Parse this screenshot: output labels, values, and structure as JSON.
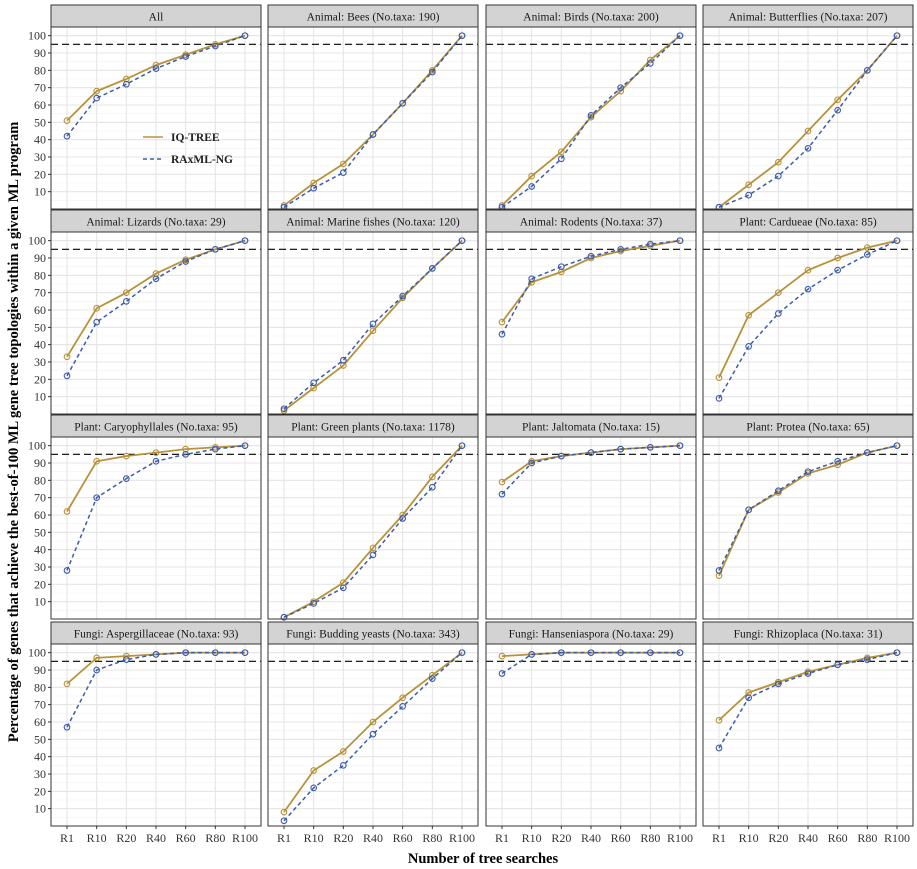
{
  "figure": {
    "ylabel": "Percentage of genes that achieve the best-of-100 ML gene tree topologies within a given ML program",
    "xlabel": "Number of tree searches",
    "legend": [
      {
        "label": "IQ-TREE",
        "color": "#B8923A",
        "style": "solid"
      },
      {
        "label": "RAxML-NG",
        "color": "#3B5BAE",
        "style": "dashed"
      }
    ],
    "colors": {
      "iqtree": "#B8923A",
      "raxml": "#3B5BAE",
      "strip": "#D3D3D3",
      "grid": "#E5E5E5",
      "reference": "#000000"
    }
  },
  "chart_data": [
    {
      "type": "line",
      "title": "All",
      "categories": [
        "R1",
        "R10",
        "R20",
        "R40",
        "R60",
        "R80",
        "R100"
      ],
      "ylim": [
        0,
        105
      ],
      "yticks": [
        10,
        20,
        30,
        40,
        50,
        60,
        70,
        80,
        90,
        100
      ],
      "reference_line": 95,
      "grid": true,
      "legend_position": "inside-left",
      "series": [
        {
          "name": "IQ-TREE",
          "values": [
            51,
            68,
            75,
            83,
            89,
            95,
            100
          ]
        },
        {
          "name": "RAxML-NG",
          "values": [
            42,
            64,
            72,
            81,
            88,
            94,
            100
          ]
        }
      ]
    },
    {
      "type": "line",
      "title": "Animal: Bees (No.taxa: 190)",
      "categories": [
        "R1",
        "R10",
        "R20",
        "R40",
        "R60",
        "R80",
        "R100"
      ],
      "ylim": [
        0,
        105
      ],
      "reference_line": 95,
      "series": [
        {
          "name": "IQ-TREE",
          "values": [
            2,
            15,
            26,
            43,
            61,
            80,
            100
          ]
        },
        {
          "name": "RAxML-NG",
          "values": [
            1,
            12,
            21,
            43,
            61,
            79,
            100
          ]
        }
      ]
    },
    {
      "type": "line",
      "title": "Animal: Birds (No.taxa: 200)",
      "categories": [
        "R1",
        "R10",
        "R20",
        "R40",
        "R60",
        "R80",
        "R100"
      ],
      "ylim": [
        0,
        105
      ],
      "reference_line": 95,
      "series": [
        {
          "name": "IQ-TREE",
          "values": [
            2,
            19,
            33,
            53,
            68,
            86,
            100
          ]
        },
        {
          "name": "RAxML-NG",
          "values": [
            1,
            13,
            29,
            54,
            70,
            84,
            100
          ]
        }
      ]
    },
    {
      "type": "line",
      "title": "Animal: Butterflies (No.taxa: 207)",
      "categories": [
        "R1",
        "R10",
        "R20",
        "R40",
        "R60",
        "R80",
        "R100"
      ],
      "ylim": [
        0,
        105
      ],
      "reference_line": 95,
      "series": [
        {
          "name": "IQ-TREE",
          "values": [
            1,
            14,
            27,
            45,
            63,
            80,
            100
          ]
        },
        {
          "name": "RAxML-NG",
          "values": [
            1,
            8,
            19,
            35,
            57,
            80,
            100
          ]
        }
      ]
    },
    {
      "type": "line",
      "title": "Animal: Lizards (No.taxa: 29)",
      "categories": [
        "R1",
        "R10",
        "R20",
        "R40",
        "R60",
        "R80",
        "R100"
      ],
      "ylim": [
        0,
        105
      ],
      "reference_line": 95,
      "series": [
        {
          "name": "IQ-TREE",
          "values": [
            33,
            61,
            70,
            81,
            89,
            95,
            100
          ]
        },
        {
          "name": "RAxML-NG",
          "values": [
            22,
            53,
            65,
            78,
            88,
            95,
            100
          ]
        }
      ]
    },
    {
      "type": "line",
      "title": "Animal: Marine fishes (No.taxa: 120)",
      "categories": [
        "R1",
        "R10",
        "R20",
        "R40",
        "R60",
        "R80",
        "R100"
      ],
      "ylim": [
        0,
        105
      ],
      "reference_line": 95,
      "series": [
        {
          "name": "IQ-TREE",
          "values": [
            2,
            15,
            28,
            48,
            67,
            84,
            100
          ]
        },
        {
          "name": "RAxML-NG",
          "values": [
            3,
            18,
            31,
            52,
            68,
            84,
            100
          ]
        }
      ]
    },
    {
      "type": "line",
      "title": "Animal: Rodents (No.taxa: 37)",
      "categories": [
        "R1",
        "R10",
        "R20",
        "R40",
        "R60",
        "R80",
        "R100"
      ],
      "ylim": [
        0,
        105
      ],
      "reference_line": 95,
      "series": [
        {
          "name": "IQ-TREE",
          "values": [
            53,
            76,
            82,
            90,
            94,
            97,
            100
          ]
        },
        {
          "name": "RAxML-NG",
          "values": [
            46,
            78,
            85,
            91,
            95,
            98,
            100
          ]
        }
      ]
    },
    {
      "type": "line",
      "title": "Plant: Cardueae (No.taxa: 85)",
      "categories": [
        "R1",
        "R10",
        "R20",
        "R40",
        "R60",
        "R80",
        "R100"
      ],
      "ylim": [
        0,
        105
      ],
      "reference_line": 95,
      "series": [
        {
          "name": "IQ-TREE",
          "values": [
            21,
            57,
            70,
            83,
            90,
            96,
            100
          ]
        },
        {
          "name": "RAxML-NG",
          "values": [
            9,
            39,
            58,
            72,
            83,
            92,
            100
          ]
        }
      ]
    },
    {
      "type": "line",
      "title": "Plant: Caryophyllales (No.taxa: 95)",
      "categories": [
        "R1",
        "R10",
        "R20",
        "R40",
        "R60",
        "R80",
        "R100"
      ],
      "ylim": [
        0,
        105
      ],
      "reference_line": 95,
      "series": [
        {
          "name": "IQ-TREE",
          "values": [
            62,
            91,
            94,
            96,
            98,
            99,
            100
          ]
        },
        {
          "name": "RAxML-NG",
          "values": [
            28,
            70,
            81,
            91,
            95,
            98,
            100
          ]
        }
      ]
    },
    {
      "type": "line",
      "title": "Plant: Green plants (No.taxa: 1178)",
      "categories": [
        "R1",
        "R10",
        "R20",
        "R40",
        "R60",
        "R80",
        "R100"
      ],
      "ylim": [
        0,
        105
      ],
      "reference_line": 95,
      "series": [
        {
          "name": "IQ-TREE",
          "values": [
            1,
            10,
            21,
            41,
            60,
            82,
            100
          ]
        },
        {
          "name": "RAxML-NG",
          "values": [
            1,
            9,
            18,
            37,
            58,
            76,
            100
          ]
        }
      ]
    },
    {
      "type": "line",
      "title": "Plant: Jaltomata (No.taxa: 15)",
      "categories": [
        "R1",
        "R10",
        "R20",
        "R40",
        "R60",
        "R80",
        "R100"
      ],
      "ylim": [
        0,
        105
      ],
      "reference_line": 95,
      "series": [
        {
          "name": "IQ-TREE",
          "values": [
            79,
            91,
            94,
            96,
            98,
            99,
            100
          ]
        },
        {
          "name": "RAxML-NG",
          "values": [
            72,
            90,
            94,
            96,
            98,
            99,
            100
          ]
        }
      ]
    },
    {
      "type": "line",
      "title": "Plant: Protea (No.taxa: 65)",
      "categories": [
        "R1",
        "R10",
        "R20",
        "R40",
        "R60",
        "R80",
        "R100"
      ],
      "ylim": [
        0,
        105
      ],
      "reference_line": 95,
      "series": [
        {
          "name": "IQ-TREE",
          "values": [
            25,
            63,
            73,
            84,
            89,
            96,
            100
          ]
        },
        {
          "name": "RAxML-NG",
          "values": [
            28,
            63,
            74,
            85,
            91,
            96,
            100
          ]
        }
      ]
    },
    {
      "type": "line",
      "title": "Fungi: Aspergillaceae (No.taxa: 93)",
      "categories": [
        "R1",
        "R10",
        "R20",
        "R40",
        "R60",
        "R80",
        "R100"
      ],
      "ylim": [
        0,
        105
      ],
      "reference_line": 95,
      "series": [
        {
          "name": "IQ-TREE",
          "values": [
            82,
            97,
            98,
            99,
            100,
            100,
            100
          ]
        },
        {
          "name": "RAxML-NG",
          "values": [
            57,
            90,
            96,
            99,
            100,
            100,
            100
          ]
        }
      ]
    },
    {
      "type": "line",
      "title": "Fungi: Budding yeasts (No.taxa: 343)",
      "categories": [
        "R1",
        "R10",
        "R20",
        "R40",
        "R60",
        "R80",
        "R100"
      ],
      "ylim": [
        0,
        105
      ],
      "reference_line": 95,
      "series": [
        {
          "name": "IQ-TREE",
          "values": [
            8,
            32,
            43,
            60,
            74,
            87,
            100
          ]
        },
        {
          "name": "RAxML-NG",
          "values": [
            3,
            22,
            35,
            53,
            69,
            85,
            100
          ]
        }
      ]
    },
    {
      "type": "line",
      "title": "Fungi: Hanseniaspora (No.taxa: 29)",
      "categories": [
        "R1",
        "R10",
        "R20",
        "R40",
        "R60",
        "R80",
        "R100"
      ],
      "ylim": [
        0,
        105
      ],
      "reference_line": 95,
      "series": [
        {
          "name": "IQ-TREE",
          "values": [
            98,
            99,
            100,
            100,
            100,
            100,
            100
          ]
        },
        {
          "name": "RAxML-NG",
          "values": [
            88,
            99,
            100,
            100,
            100,
            100,
            100
          ]
        }
      ]
    },
    {
      "type": "line",
      "title": "Fungi: Rhizoplaca (No.taxa: 31)",
      "categories": [
        "R1",
        "R10",
        "R20",
        "R40",
        "R60",
        "R80",
        "R100"
      ],
      "ylim": [
        0,
        105
      ],
      "reference_line": 95,
      "series": [
        {
          "name": "IQ-TREE",
          "values": [
            61,
            77,
            83,
            89,
            93,
            97,
            100
          ]
        },
        {
          "name": "RAxML-NG",
          "values": [
            45,
            74,
            82,
            88,
            93,
            96,
            100
          ]
        }
      ]
    }
  ]
}
